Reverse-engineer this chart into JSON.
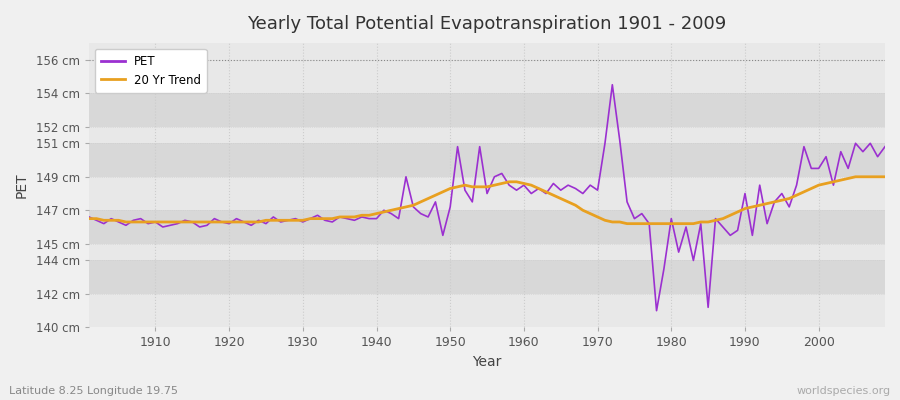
{
  "title": "Yearly Total Potential Evapotranspiration 1901 - 2009",
  "xlabel": "Year",
  "ylabel": "PET",
  "subtitle_left": "Latitude 8.25 Longitude 19.75",
  "subtitle_right": "worldspecies.org",
  "pet_color": "#9b30d0",
  "trend_color": "#e8a020",
  "bg_color": "#f0f0f0",
  "plot_bg_light": "#e8e8e8",
  "plot_bg_dark": "#d8d8d8",
  "grid_color": "#cccccc",
  "ylim": [
    140,
    157
  ],
  "yticks": [
    140,
    142,
    144,
    145,
    147,
    149,
    151,
    152,
    154,
    156
  ],
  "xlim": [
    1901,
    2009
  ],
  "xticks": [
    1910,
    1920,
    1930,
    1940,
    1950,
    1960,
    1970,
    1980,
    1990,
    2000
  ],
  "years": [
    1901,
    1902,
    1903,
    1904,
    1905,
    1906,
    1907,
    1908,
    1909,
    1910,
    1911,
    1912,
    1913,
    1914,
    1915,
    1916,
    1917,
    1918,
    1919,
    1920,
    1921,
    1922,
    1923,
    1924,
    1925,
    1926,
    1927,
    1928,
    1929,
    1930,
    1931,
    1932,
    1933,
    1934,
    1935,
    1936,
    1937,
    1938,
    1939,
    1940,
    1941,
    1942,
    1943,
    1944,
    1945,
    1946,
    1947,
    1948,
    1949,
    1950,
    1951,
    1952,
    1953,
    1954,
    1955,
    1956,
    1957,
    1958,
    1959,
    1960,
    1961,
    1962,
    1963,
    1964,
    1965,
    1966,
    1967,
    1968,
    1969,
    1970,
    1971,
    1972,
    1973,
    1974,
    1975,
    1976,
    1977,
    1978,
    1979,
    1980,
    1981,
    1982,
    1983,
    1984,
    1985,
    1986,
    1987,
    1988,
    1989,
    1990,
    1991,
    1992,
    1993,
    1994,
    1995,
    1996,
    1997,
    1998,
    1999,
    2000,
    2001,
    2002,
    2003,
    2004,
    2005,
    2006,
    2007,
    2008,
    2009
  ],
  "pet_values": [
    146.6,
    146.4,
    146.2,
    146.5,
    146.3,
    146.1,
    146.4,
    146.5,
    146.2,
    146.3,
    146.0,
    146.1,
    146.2,
    146.4,
    146.3,
    146.0,
    146.1,
    146.5,
    146.3,
    146.2,
    146.5,
    146.3,
    146.1,
    146.4,
    146.2,
    146.6,
    146.3,
    146.4,
    146.5,
    146.3,
    146.5,
    146.7,
    146.4,
    146.3,
    146.6,
    146.5,
    146.4,
    146.6,
    146.5,
    146.5,
    147.0,
    146.8,
    146.5,
    149.0,
    147.2,
    146.8,
    146.6,
    147.5,
    145.5,
    147.2,
    150.8,
    148.2,
    147.5,
    150.8,
    148.0,
    149.0,
    149.2,
    148.5,
    148.2,
    148.5,
    148.0,
    148.3,
    148.0,
    148.6,
    148.2,
    148.5,
    148.3,
    148.0,
    148.5,
    148.2,
    151.0,
    154.5,
    151.2,
    147.5,
    146.5,
    146.8,
    146.2,
    141.0,
    143.5,
    146.5,
    144.5,
    146.0,
    144.0,
    146.2,
    141.2,
    146.5,
    146.0,
    145.5,
    145.8,
    148.0,
    145.5,
    148.5,
    146.2,
    147.5,
    148.0,
    147.2,
    148.5,
    150.8,
    149.5,
    149.5,
    150.2,
    148.5,
    150.5,
    149.5,
    151.0,
    150.5,
    151.0,
    150.2,
    150.8
  ],
  "trend_values": [
    146.5,
    146.5,
    146.4,
    146.4,
    146.4,
    146.3,
    146.3,
    146.3,
    146.3,
    146.3,
    146.3,
    146.3,
    146.3,
    146.3,
    146.3,
    146.3,
    146.3,
    146.3,
    146.3,
    146.3,
    146.3,
    146.3,
    146.3,
    146.3,
    146.4,
    146.4,
    146.4,
    146.4,
    146.4,
    146.4,
    146.5,
    146.5,
    146.5,
    146.5,
    146.6,
    146.6,
    146.6,
    146.7,
    146.7,
    146.8,
    146.9,
    147.0,
    147.1,
    147.2,
    147.3,
    147.5,
    147.7,
    147.9,
    148.1,
    148.3,
    148.4,
    148.5,
    148.4,
    148.4,
    148.4,
    148.5,
    148.6,
    148.7,
    148.7,
    148.6,
    148.5,
    148.3,
    148.1,
    147.9,
    147.7,
    147.5,
    147.3,
    147.0,
    146.8,
    146.6,
    146.4,
    146.3,
    146.3,
    146.2,
    146.2,
    146.2,
    146.2,
    146.2,
    146.2,
    146.2,
    146.2,
    146.2,
    146.2,
    146.3,
    146.3,
    146.4,
    146.5,
    146.7,
    146.9,
    147.1,
    147.2,
    147.3,
    147.4,
    147.5,
    147.6,
    147.7,
    147.9,
    148.1,
    148.3,
    148.5,
    148.6,
    148.7,
    148.8,
    148.9,
    149.0,
    149.0,
    149.0,
    149.0,
    149.0
  ]
}
